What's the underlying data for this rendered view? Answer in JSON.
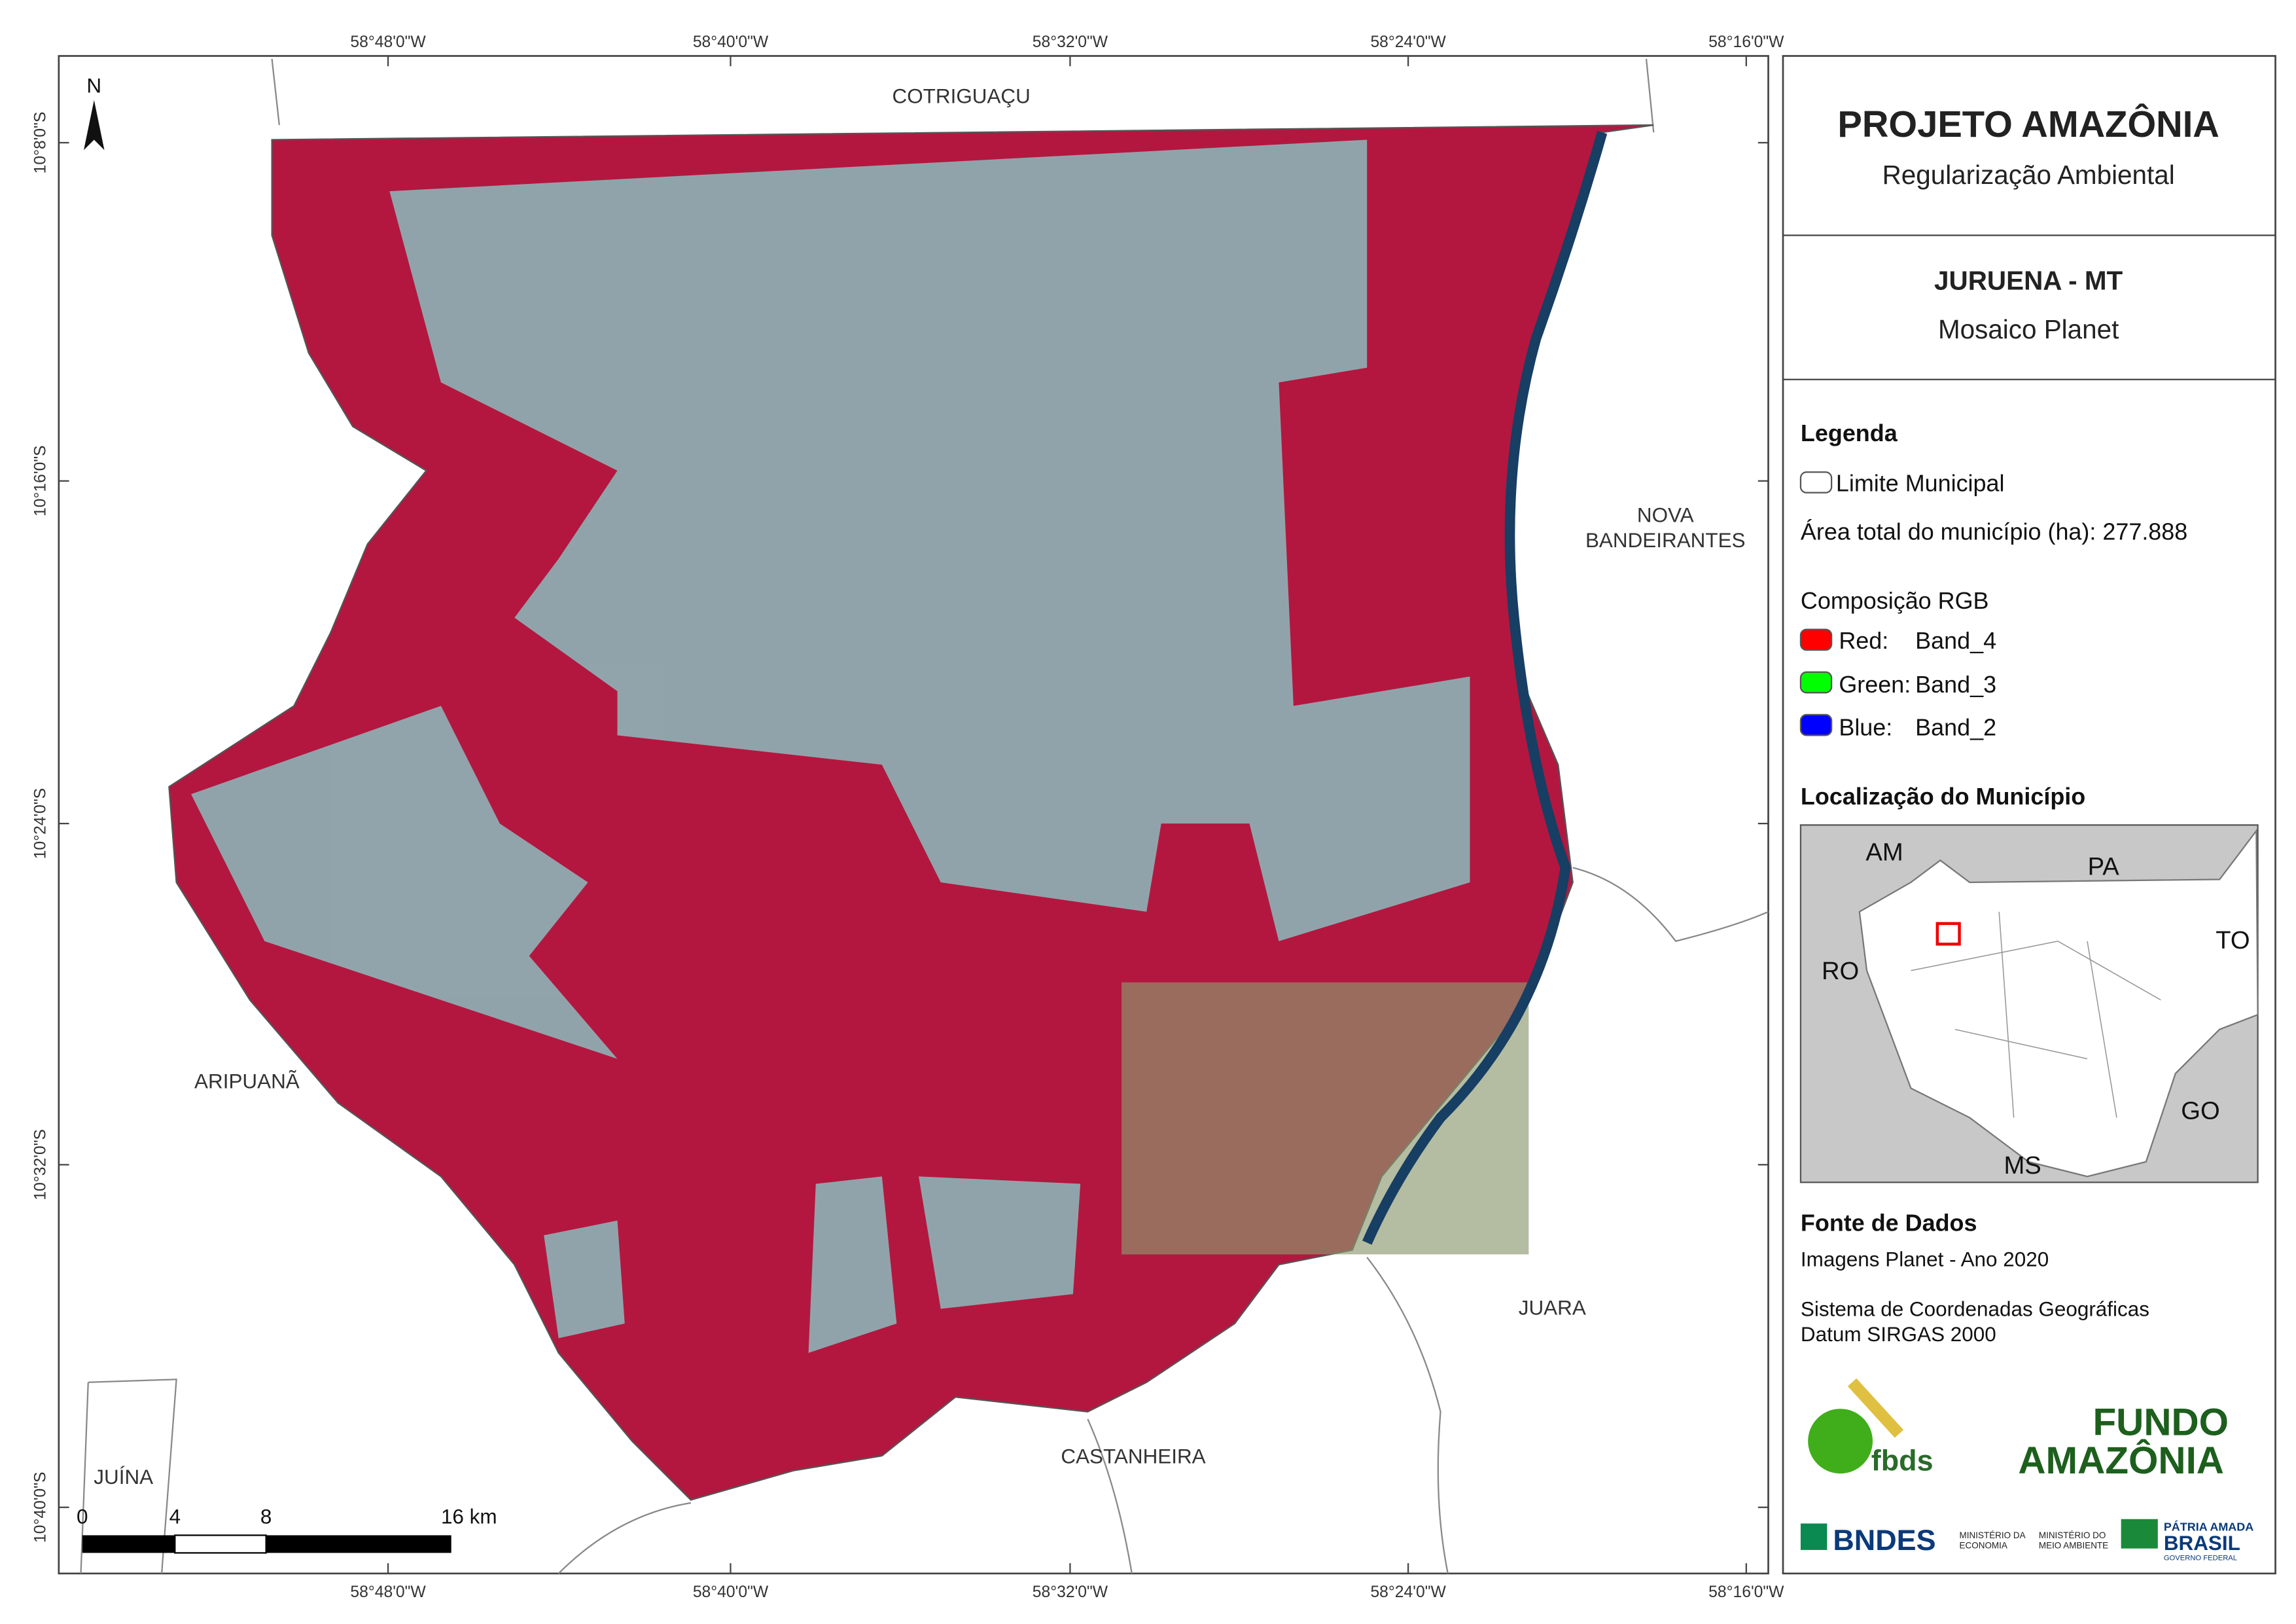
{
  "header": {
    "title": "PROJETO AMAZÔNIA",
    "subtitle": "Regularização Ambiental"
  },
  "area": {
    "title": "JURUENA - MT",
    "subtitle": "Mosaico Planet"
  },
  "map": {
    "north": "N",
    "top_coords": [
      "58°48'0\"W",
      "58°40'0\"W",
      "58°32'0\"W",
      "58°24'0\"W",
      "58°16'0\"W"
    ],
    "bottom_coords": [
      "58°48'0\"W",
      "58°40'0\"W",
      "58°32'0\"W",
      "58°24'0\"W",
      "58°16'0\"W"
    ],
    "left_coords": [
      "10°8'0\"S",
      "10°16'0\"S",
      "10°24'0\"S",
      "10°32'0\"S",
      "10°40'0\"S"
    ],
    "places": {
      "cotriguacu": "COTRIGUAÇU",
      "nova_bandeirantes": [
        "NOVA",
        "BANDEIRANTES"
      ],
      "aripuana": "ARIPUANÃ",
      "juara": "JUARA",
      "castanheira": "CASTANHEIRA",
      "juina": "JUÍNA"
    },
    "scale": [
      "0",
      "4",
      "8",
      "16 km"
    ]
  },
  "legend": {
    "title": "Legenda",
    "boundary": "Limite Municipal",
    "area_text": "Área total do município (ha): 277.888",
    "rgb_title": "Composição RGB",
    "bands": [
      {
        "channel": "Red:",
        "band": "Band_4"
      },
      {
        "channel": "Green:",
        "band": "Band_3"
      },
      {
        "channel": "Blue:",
        "band": "Band_2"
      }
    ]
  },
  "location": {
    "title": "Localização do Município",
    "states": [
      "AM",
      "PA",
      "RO",
      "TO",
      "GO",
      "MS"
    ]
  },
  "sources": {
    "title": "Fonte de Dados",
    "lines": [
      "Imagens Planet - Ano 2020",
      "Sistema de Coordenadas Geográficas",
      "Datum SIRGAS 2000"
    ]
  },
  "logos": {
    "fbds": "fbds",
    "fundo": [
      "FUNDO",
      "AMAZÔNIA"
    ],
    "bndes": "BNDES",
    "economia": [
      "MINISTÉRIO DA",
      "ECONOMIA"
    ],
    "meio_ambiente": [
      "MINISTÉRIO DO",
      "MEIO AMBIENTE"
    ],
    "brasil": [
      "PÁTRIA AMADA",
      "BRASIL",
      "GOVERNO FEDERAL"
    ]
  }
}
